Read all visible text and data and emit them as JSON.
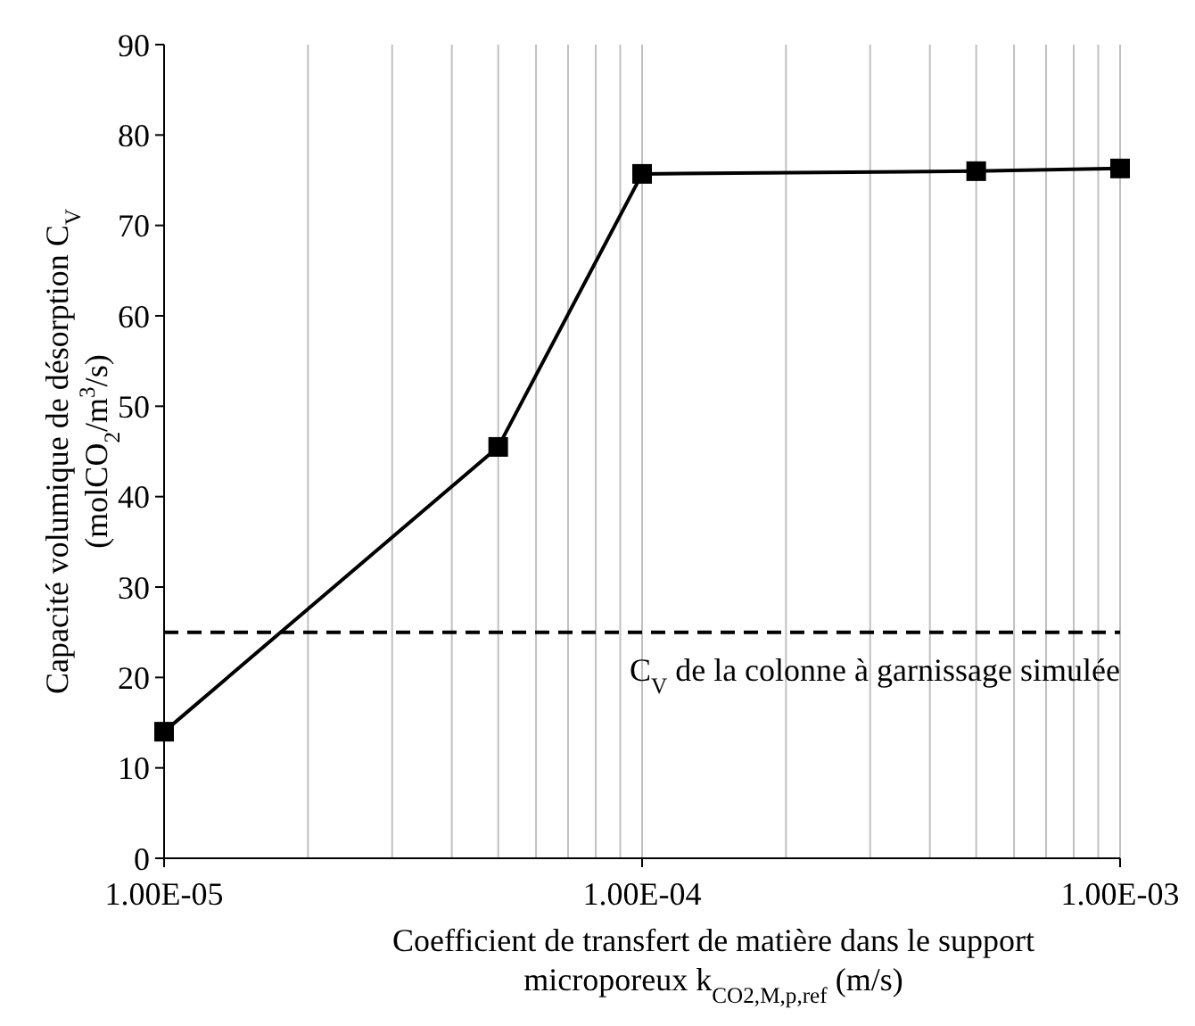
{
  "chart_data": {
    "type": "line",
    "xlabel": "Coefficient de transfert de matière dans le support microporeux k$_{CO2,M,p,ref}$ (m/s)",
    "ylabel": "Capacité volumique de désorption C$_{V}$ (molCO$_{2}$/m$^{3}$/s)",
    "x": [
      1e-05,
      5e-05,
      0.0001,
      0.0005,
      0.001
    ],
    "series": [
      {
        "color": "#000000",
        "values": [
          14,
          45.5,
          75.7,
          76,
          76.3
        ]
      }
    ],
    "log": "x",
    "xlim": [
      1e-05,
      0.001
    ],
    "xticks": [
      {
        "value": 1e-05,
        "label": "1.00E-05"
      },
      {
        "value": 2e-05,
        "label": null
      },
      {
        "value": 3e-05,
        "label": null
      },
      {
        "value": 4e-05,
        "label": null
      },
      {
        "value": 5e-05,
        "label": null
      },
      {
        "value": 6e-05,
        "label": null
      },
      {
        "value": 7e-05,
        "label": null
      },
      {
        "value": 8e-05,
        "label": null
      },
      {
        "value": 9e-05,
        "label": null
      },
      {
        "value": 0.0001,
        "label": "1.00E-04"
      },
      {
        "value": 0.0002,
        "label": null
      },
      {
        "value": 0.0003,
        "label": null
      },
      {
        "value": 0.0004,
        "label": null
      },
      {
        "value": 0.0005,
        "label": null
      },
      {
        "value": 0.0006,
        "label": null
      },
      {
        "value": 0.0007,
        "label": null
      },
      {
        "value": 0.0008,
        "label": null
      },
      {
        "value": 0.0009,
        "label": null
      },
      {
        "value": 0.001,
        "label": "1.00E-03"
      }
    ],
    "ylim": [
      0,
      90
    ],
    "yticks": [
      0,
      10,
      20,
      30,
      40,
      50,
      60,
      70,
      80,
      90
    ],
    "grid": "x",
    "marker": "square",
    "line_style": "solid",
    "ref_lines": [
      {
        "axis": "y",
        "value": 25,
        "label": "C$_{V}$ de la colonne à garnissage simulée",
        "color": "#000000",
        "line_style": "dashed"
      }
    ]
  }
}
